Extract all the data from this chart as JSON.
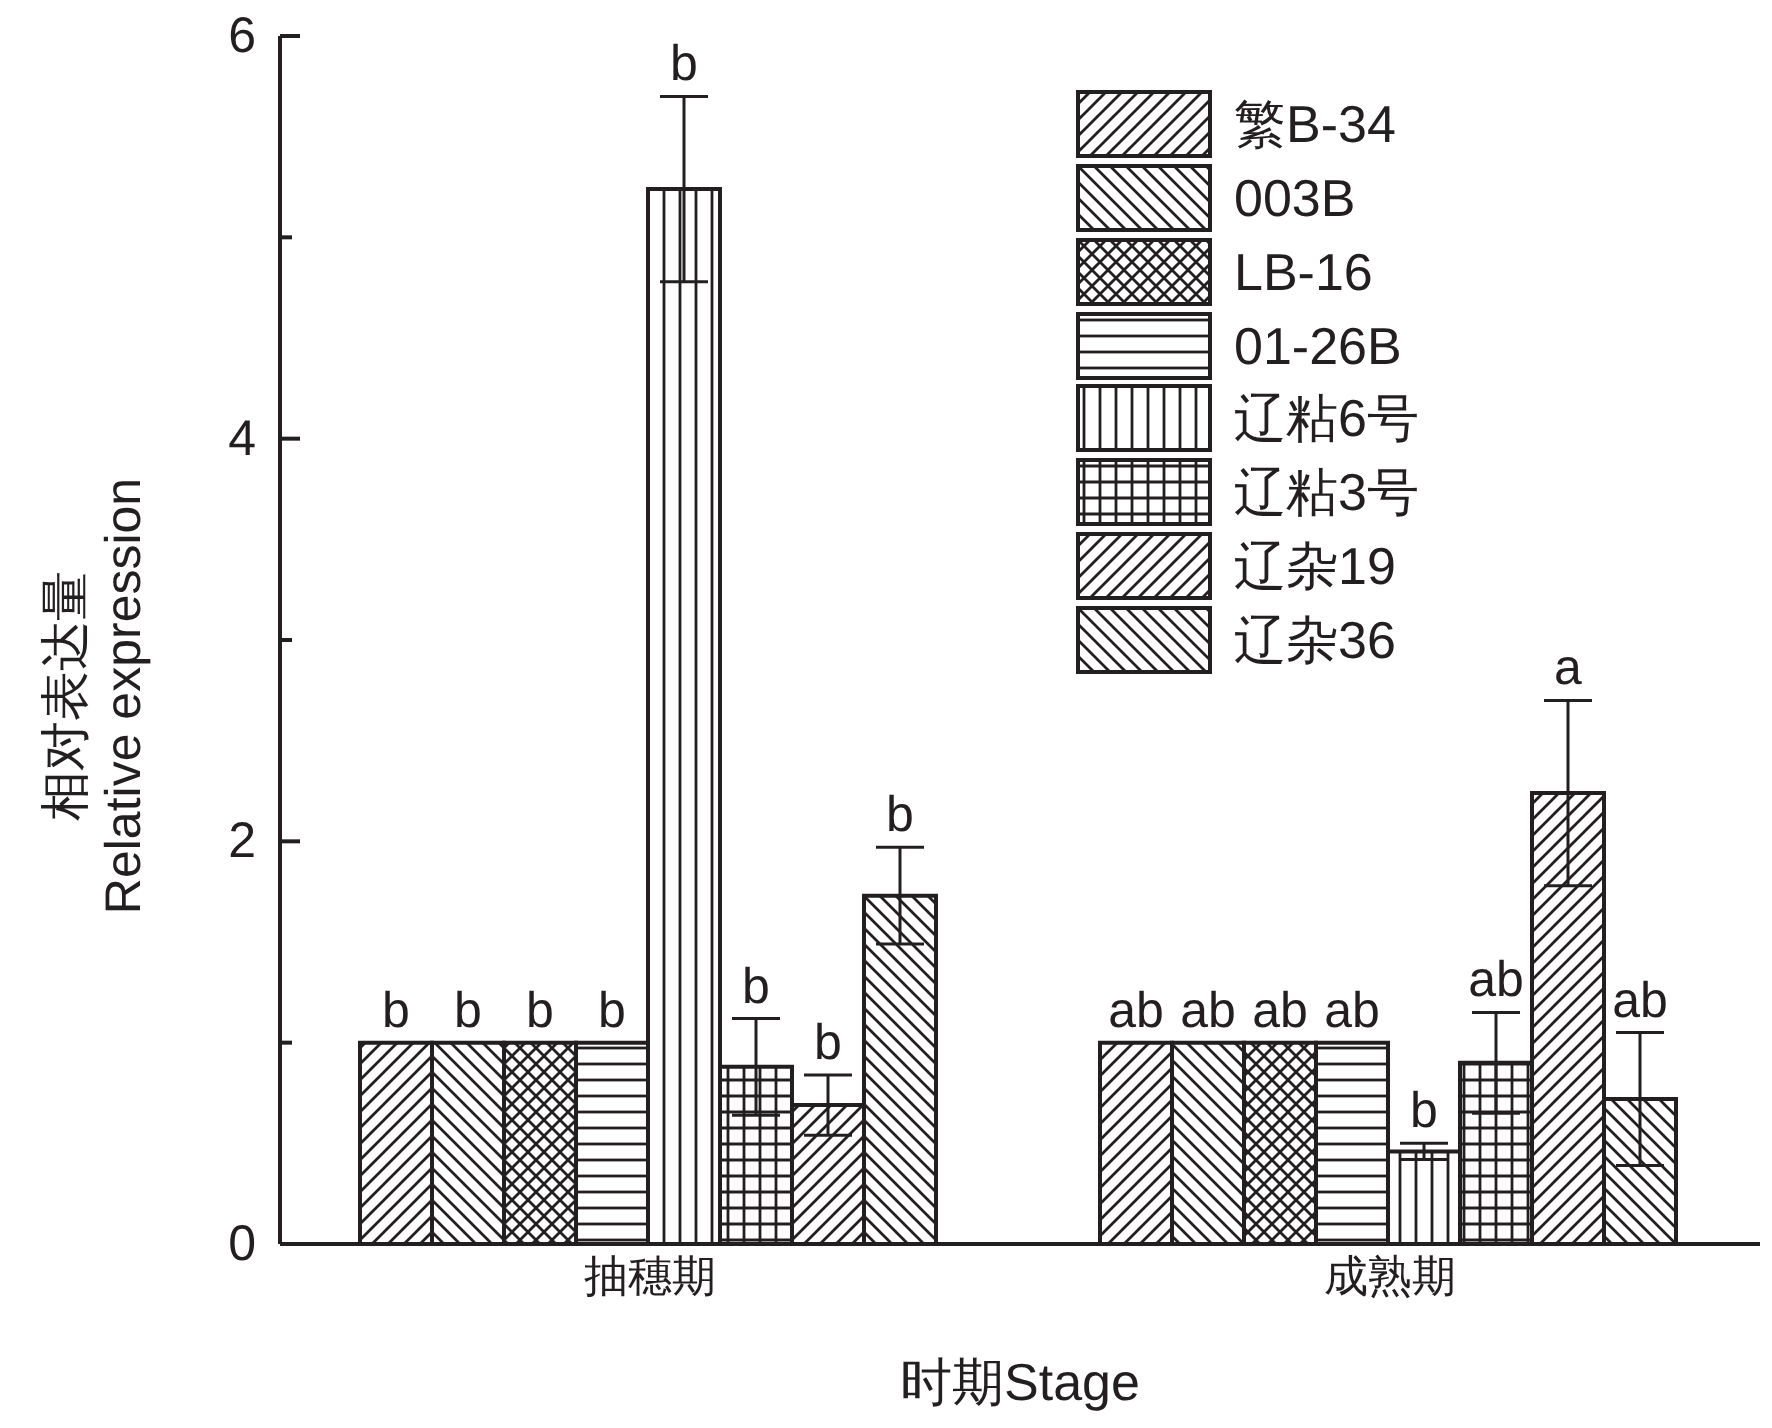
{
  "chart_data": {
    "type": "bar",
    "xlabel": "时期Stage",
    "ylabel": "相对表达量\nRelative expression",
    "categories": [
      "抽穗期",
      "成熟期"
    ],
    "series": [
      {
        "name": "繁B-34",
        "color": "#231f20",
        "values": [
          1,
          1
        ],
        "value_labels": [
          "b",
          "ab"
        ]
      },
      {
        "name": "003B",
        "color": "#231f20",
        "values": [
          1,
          1
        ],
        "value_labels": [
          "b",
          "ab"
        ]
      },
      {
        "name": "LB-16",
        "color": "#231f20",
        "values": [
          1,
          1
        ],
        "value_labels": [
          "b",
          "ab"
        ]
      },
      {
        "name": "01-26B",
        "color": "#231f20",
        "values": [
          1,
          1
        ],
        "value_labels": [
          "b",
          "ab"
        ]
      },
      {
        "name": "辽粘6号",
        "color": "#231f20",
        "values": [
          5.24,
          0.46
        ],
        "errors": [
          0.46,
          0.04
        ],
        "value_labels": [
          "b",
          "b"
        ]
      },
      {
        "name": "辽粘3号",
        "color": "#231f20",
        "values": [
          0.88,
          0.9
        ],
        "errors": [
          0.24,
          0.25
        ],
        "value_labels": [
          "b",
          "ab"
        ]
      },
      {
        "name": "辽杂19",
        "color": "#231f20",
        "values": [
          0.69,
          2.24
        ],
        "errors": [
          0.15,
          0.46
        ],
        "value_labels": [
          "b",
          "a"
        ]
      },
      {
        "name": "辽杂36",
        "color": "#231f20",
        "values": [
          1.73,
          0.72
        ],
        "errors": [
          0.24,
          0.33
        ],
        "value_labels": [
          "b",
          "ab"
        ]
      }
    ],
    "ylim": [
      0,
      6
    ],
    "yticks": [
      0,
      {
        "value": 1,
        "label": null
      },
      2,
      {
        "value": 3,
        "label": null
      },
      4,
      {
        "value": 5,
        "label": null
      },
      6
    ],
    "legend": "top right"
  }
}
